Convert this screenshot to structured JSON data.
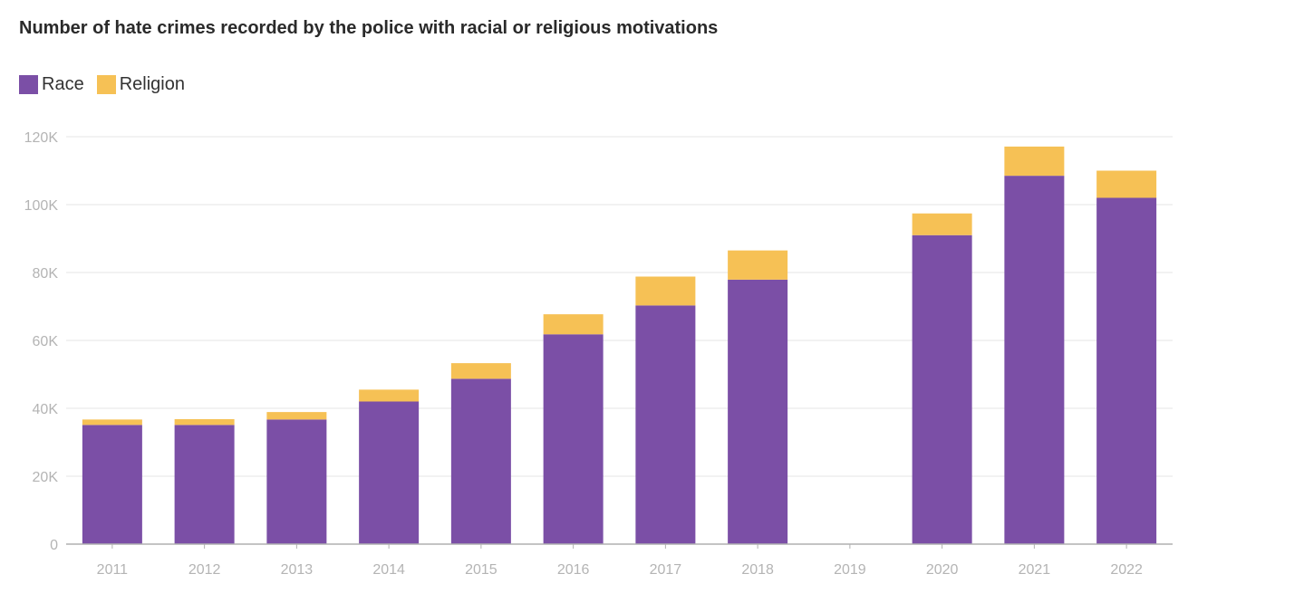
{
  "chart_data": {
    "type": "bar",
    "stacked": true,
    "title": "Number of hate crimes recorded by the police with racial or religious motivations",
    "categories": [
      "2011",
      "2012",
      "2013",
      "2014",
      "2015",
      "2016",
      "2017",
      "2018",
      "2019",
      "2020",
      "2021",
      "2022"
    ],
    "series": [
      {
        "name": "Race",
        "color": "#7b4fa6",
        "values": [
          35100,
          35100,
          36700,
          42000,
          48700,
          61800,
          70300,
          77900,
          0,
          91000,
          108500,
          102000
        ]
      },
      {
        "name": "Religion",
        "color": "#f6c155",
        "values": [
          1600,
          1700,
          2200,
          3500,
          4600,
          5900,
          8500,
          8600,
          0,
          6400,
          8600,
          8000
        ]
      }
    ],
    "ylim": [
      0,
      120000
    ],
    "yticks": [
      0,
      20000,
      40000,
      60000,
      80000,
      100000,
      120000
    ],
    "ytick_labels": [
      "0",
      "20K",
      "40K",
      "60K",
      "80K",
      "100K",
      "120K"
    ],
    "grid": true,
    "legend_position": "top-left",
    "xlabel": "",
    "ylabel": ""
  }
}
